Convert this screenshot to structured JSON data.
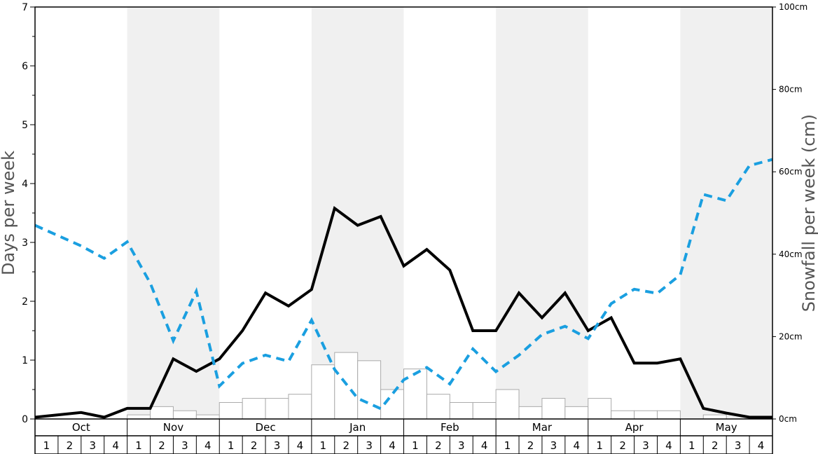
{
  "chart_data": {
    "type": "bar",
    "title": "",
    "months": [
      "Oct",
      "Nov",
      "Dec",
      "Jan",
      "Feb",
      "Mar",
      "Apr",
      "May"
    ],
    "weeks": [
      "1",
      "2",
      "3",
      "4"
    ],
    "ylabel": "Days per week",
    "ylabel_right": "Snowfall per week (cm)",
    "ylim": [
      0,
      7
    ],
    "ylim_right": [
      0,
      100
    ],
    "y_ticks": [
      "0",
      "1",
      "2",
      "3",
      "4",
      "5",
      "6",
      "7"
    ],
    "y_right_ticks": [
      "0cm",
      "20cm",
      "40cm",
      "60cm",
      "80cm",
      "100cm"
    ],
    "shaded_months": [
      "Nov",
      "Jan",
      "Mar",
      "May"
    ],
    "series": [
      {
        "type": "bar",
        "axis": "left",
        "values": [
          0,
          0,
          0,
          0,
          0.07,
          0.21,
          0.14,
          0.07,
          0.28,
          0.35,
          0.35,
          0.42,
          0.92,
          1.13,
          0.99,
          0.5,
          0.85,
          0.42,
          0.28,
          0.28,
          0.5,
          0.21,
          0.35,
          0.21,
          0.35,
          0.14,
          0.14,
          0.14,
          0,
          0.07,
          0,
          0
        ]
      },
      {
        "type": "line",
        "style": "solid",
        "axis": "left",
        "color": "#000000",
        "values": [
          0.03,
          0.07,
          0.11,
          0.03,
          0.18,
          0.18,
          1.02,
          0.81,
          1.02,
          1.5,
          2.14,
          1.92,
          2.2,
          3.58,
          3.29,
          3.44,
          2.6,
          2.88,
          2.53,
          1.5,
          1.5,
          2.14,
          1.72,
          2.14,
          1.5,
          1.72,
          0.95,
          0.95,
          1.02,
          0.18,
          0.1,
          0.03,
          0.03
        ]
      },
      {
        "type": "line",
        "style": "dashed",
        "axis": "right",
        "color": "#1a9fe0",
        "values": [
          47,
          44.5,
          42,
          39,
          43,
          33,
          19,
          31,
          8,
          13.5,
          15.5,
          14,
          24,
          12,
          5,
          2.5,
          9.5,
          12.5,
          8.5,
          17,
          11.5,
          15.5,
          20.5,
          22.5,
          19.5,
          28,
          31.5,
          30.5,
          35,
          54.5,
          53,
          61.5,
          63
        ]
      }
    ]
  }
}
